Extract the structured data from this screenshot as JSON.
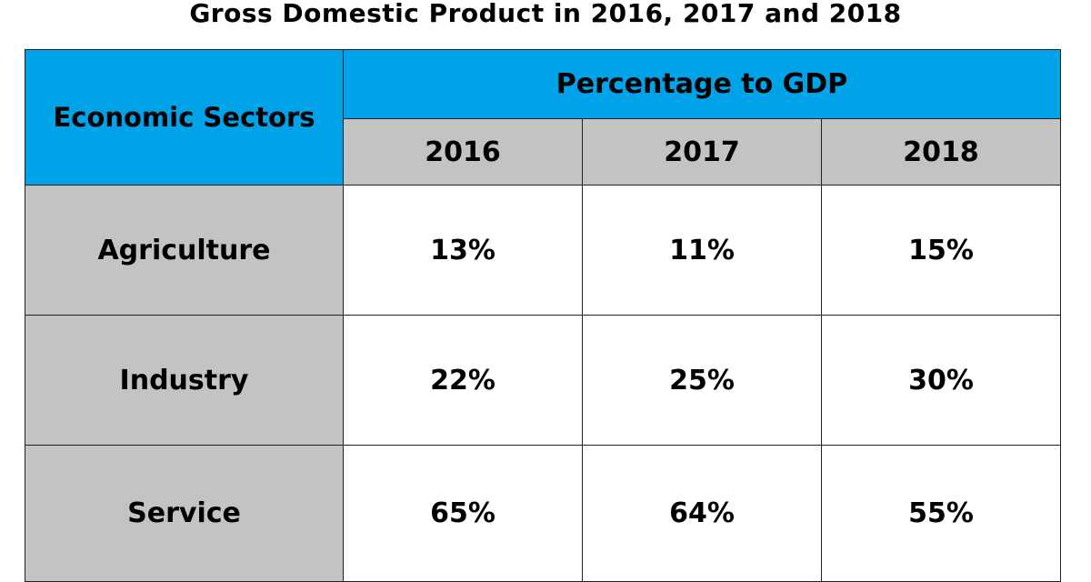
{
  "chart_data": {
    "type": "table",
    "title": "Gross Domestic Product in 2016, 2017 and 2018",
    "row_header": "Economic Sectors",
    "group_header": "Percentage to GDP",
    "columns": [
      "2016",
      "2017",
      "2018"
    ],
    "rows": [
      {
        "label": "Agriculture",
        "values": [
          "13%",
          "11%",
          "15%"
        ]
      },
      {
        "label": "Industry",
        "values": [
          "22%",
          "25%",
          "30%"
        ]
      },
      {
        "label": "Service",
        "values": [
          "65%",
          "64%",
          "55%"
        ]
      }
    ]
  },
  "colors": {
    "header_blue": "#00a2e8",
    "header_gray": "#c3c3c3"
  }
}
